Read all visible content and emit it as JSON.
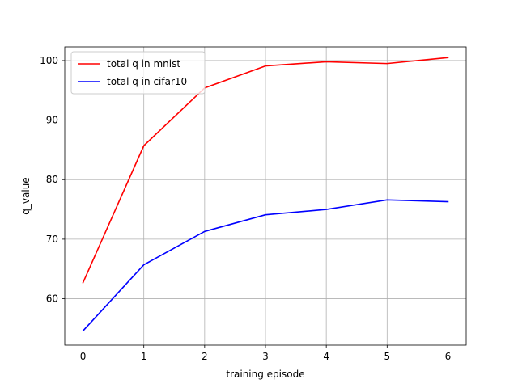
{
  "chart_data": {
    "type": "line",
    "title": "",
    "xlabel": "training episode",
    "ylabel": "q_value",
    "x": [
      0,
      1,
      2,
      3,
      4,
      5,
      6
    ],
    "xlim": [
      -0.3,
      6.3
    ],
    "ylim": [
      52.2,
      102.3
    ],
    "xticks": [
      0,
      1,
      2,
      3,
      4,
      5,
      6
    ],
    "yticks": [
      60,
      70,
      80,
      90,
      100
    ],
    "grid": true,
    "legend_position": "upper-left",
    "series": [
      {
        "name": "total q in mnist",
        "color": "#ff0000",
        "values": [
          62.7,
          85.7,
          95.4,
          99.1,
          99.8,
          99.5,
          100.5
        ]
      },
      {
        "name": "total q in cifar10",
        "color": "#0000ff",
        "values": [
          54.6,
          65.7,
          71.3,
          74.1,
          75.0,
          76.6,
          76.3
        ]
      }
    ]
  }
}
